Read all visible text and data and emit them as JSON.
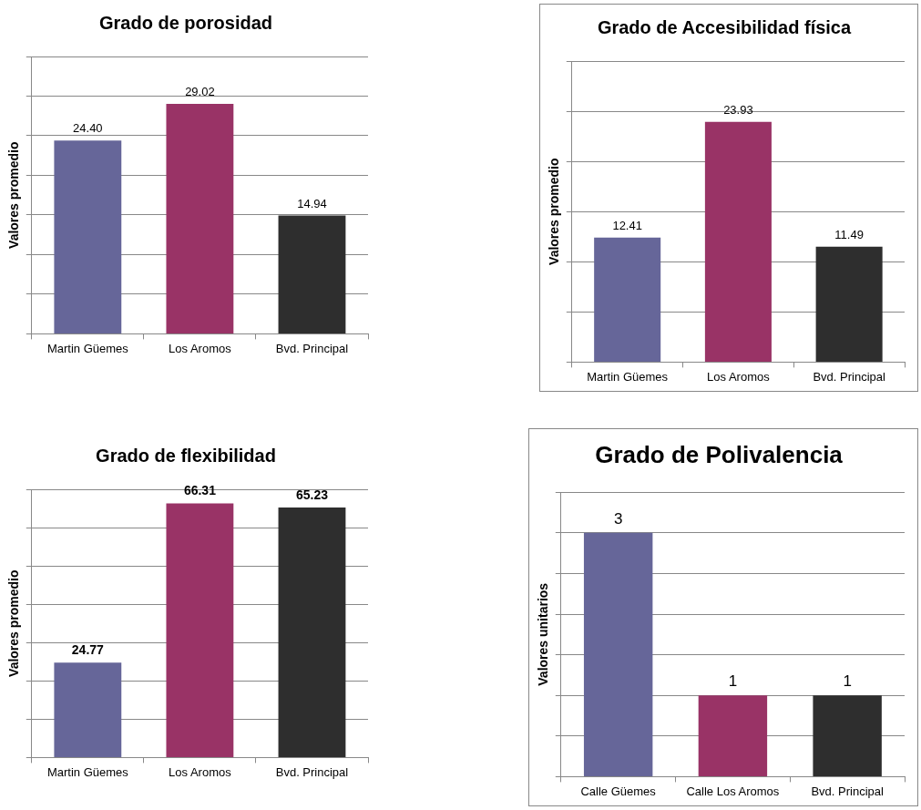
{
  "chart_data": [
    {
      "type": "bar",
      "title": "Grado de porosidad",
      "ylabel": "Valores promedio",
      "categories": [
        "Martin Güemes",
        "Los Aromos",
        "Bvd. Principal"
      ],
      "values": [
        24.4,
        29.02,
        14.94
      ],
      "value_labels": [
        "24.40",
        "29.02",
        "14.94"
      ],
      "colors": [
        "#666699",
        "#993366",
        "#2e2e2e"
      ],
      "ylim": [
        0,
        35
      ],
      "yticks": [
        {
          "value": 0,
          "label": null
        },
        {
          "value": 5,
          "label": null
        },
        {
          "value": 10,
          "label": null
        },
        {
          "value": 15,
          "label": null
        },
        {
          "value": 20,
          "label": null
        },
        {
          "value": 25,
          "label": null
        },
        {
          "value": 30,
          "label": null
        },
        {
          "value": 35,
          "label": null
        }
      ],
      "grid": "y",
      "tick_labels": "x",
      "legend": false
    },
    {
      "type": "bar",
      "title": "Grado de Accesibilidad física",
      "ylabel": "Valores promedio",
      "categories": [
        "Martin Güemes",
        "Los Aromos",
        "Bvd. Principal"
      ],
      "values": [
        12.41,
        23.93,
        11.49
      ],
      "value_labels": [
        "12.41",
        "23.93",
        "11.49"
      ],
      "colors": [
        "#666699",
        "#993366",
        "#2e2e2e"
      ],
      "ylim": [
        0,
        30
      ],
      "yticks": [
        {
          "value": 0,
          "label": null
        },
        {
          "value": 5,
          "label": null
        },
        {
          "value": 10,
          "label": null
        },
        {
          "value": 15,
          "label": null
        },
        {
          "value": 20,
          "label": null
        },
        {
          "value": 25,
          "label": null
        },
        {
          "value": 30,
          "label": null
        }
      ],
      "grid": "y",
      "tick_labels": "x",
      "legend": false
    },
    {
      "type": "bar",
      "title": "Grado de flexibilidad",
      "ylabel": "Valores promedio",
      "categories": [
        "Martin Güemes",
        "Los Aromos",
        "Bvd. Principal"
      ],
      "values": [
        24.77,
        66.31,
        65.23
      ],
      "value_labels": [
        "24.77",
        "66.31",
        "65.23"
      ],
      "colors": [
        "#666699",
        "#993366",
        "#2e2e2e"
      ],
      "ylim": [
        0,
        70
      ],
      "yticks": [
        {
          "value": 0,
          "label": null
        },
        {
          "value": 10,
          "label": null
        },
        {
          "value": 20,
          "label": null
        },
        {
          "value": 30,
          "label": null
        },
        {
          "value": 40,
          "label": null
        },
        {
          "value": 50,
          "label": null
        },
        {
          "value": 60,
          "label": null
        },
        {
          "value": 70,
          "label": null
        }
      ],
      "grid": "y",
      "tick_labels": "x",
      "legend": false
    },
    {
      "type": "bar",
      "title": "Grado de Polivalencia",
      "ylabel": "Valores unitarios",
      "categories": [
        "Calle Güemes",
        "Calle Los Aromos",
        "Bvd. Principal"
      ],
      "values": [
        3,
        1,
        1
      ],
      "value_labels": [
        "3",
        "1",
        "1"
      ],
      "colors": [
        "#666699",
        "#993366",
        "#2e2e2e"
      ],
      "ylim": [
        0,
        3.5
      ],
      "yticks": [
        {
          "value": 0,
          "label": null
        },
        {
          "value": 0.5,
          "label": null
        },
        {
          "value": 1,
          "label": null
        },
        {
          "value": 1.5,
          "label": null
        },
        {
          "value": 2,
          "label": null
        },
        {
          "value": 2.5,
          "label": null
        },
        {
          "value": 3,
          "label": null
        },
        {
          "value": 3.5,
          "label": null
        }
      ],
      "grid": "y",
      "tick_labels": "x",
      "legend": false
    }
  ]
}
